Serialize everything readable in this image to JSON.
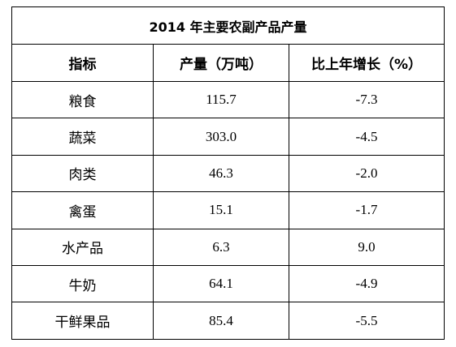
{
  "table": {
    "title": "2014 年主要农副产品产量",
    "header": [
      "指标",
      "产量（万吨）",
      "比上年增长（%）"
    ],
    "rows": [
      [
        "粮食",
        "115.7",
        "-7.3"
      ],
      [
        "蔬菜",
        "303.0",
        "-4.5"
      ],
      [
        "肉类",
        "46.3",
        "-2.0"
      ],
      [
        "禽蛋",
        "15.1",
        "-1.7"
      ],
      [
        "水产品",
        "6.3",
        "9.0"
      ],
      [
        "牛奶",
        "64.1",
        "-4.9"
      ],
      [
        "干鲜果品",
        "85.4",
        "-5.5"
      ]
    ]
  }
}
